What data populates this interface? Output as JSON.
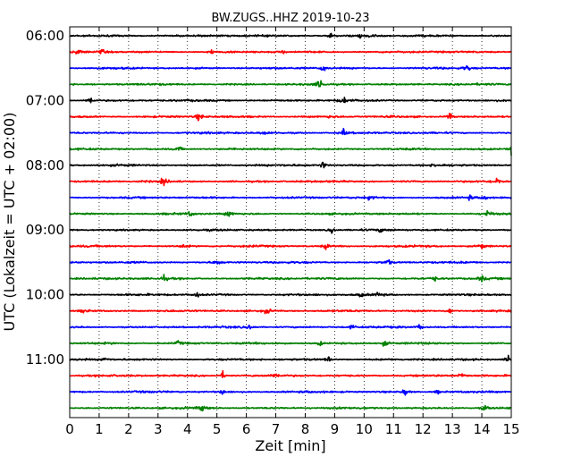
{
  "chart_data": {
    "type": "line",
    "title": "BW.ZUGS..HHZ 2019-10-23",
    "xlabel": "Zeit  [min]",
    "ylabel": "UTC (Lokalzeit = UTC + 02:00)",
    "xlim": [
      0,
      15
    ],
    "x_ticks": [
      "0",
      "1",
      "2",
      "3",
      "4",
      "5",
      "6",
      "7",
      "8",
      "9",
      "10",
      "11",
      "12",
      "13",
      "14",
      "15"
    ],
    "y_tick_labels": [
      "06:00",
      "07:00",
      "08:00",
      "09:00",
      "10:00",
      "11:00"
    ],
    "grid": "vertical-dotted",
    "color_cycle": [
      "#000000",
      "#ff0000",
      "#0000ff",
      "#008000"
    ],
    "series": [
      {
        "start": "06:00",
        "color": "#000000",
        "events": [
          [
            8.9,
            0.5
          ],
          [
            9.9,
            0.6
          ],
          [
            10.3,
            0.4
          ]
        ]
      },
      {
        "start": "06:15",
        "color": "#ff0000",
        "events": [
          [
            0.3,
            0.5
          ],
          [
            1.1,
            0.5
          ],
          [
            4.8,
            0.4
          ],
          [
            7.3,
            0.4
          ]
        ]
      },
      {
        "start": "06:30",
        "color": "#0000ff",
        "events": [
          [
            8.6,
            1.0
          ],
          [
            13.5,
            0.8
          ]
        ]
      },
      {
        "start": "06:45",
        "color": "#008000",
        "events": [
          [
            8.5,
            0.9
          ]
        ]
      },
      {
        "start": "07:00",
        "color": "#000000",
        "events": [
          [
            0.7,
            0.9
          ],
          [
            9.3,
            0.8
          ]
        ]
      },
      {
        "start": "07:15",
        "color": "#ff0000",
        "events": [
          [
            4.4,
            0.9
          ],
          [
            8.9,
            0.4
          ],
          [
            12.9,
            0.8
          ]
        ]
      },
      {
        "start": "07:30",
        "color": "#0000ff",
        "events": [
          [
            6.6,
            0.4
          ],
          [
            9.3,
            0.7
          ]
        ]
      },
      {
        "start": "07:45",
        "color": "#008000",
        "events": [
          [
            3.7,
            0.6
          ],
          [
            15.0,
            0.9
          ]
        ]
      },
      {
        "start": "08:00",
        "color": "#000000",
        "events": [
          [
            8.6,
            0.8
          ],
          [
            12.4,
            0.3
          ]
        ]
      },
      {
        "start": "08:15",
        "color": "#ff0000",
        "events": [
          [
            3.2,
            0.7
          ],
          [
            14.5,
            0.8
          ]
        ]
      },
      {
        "start": "08:30",
        "color": "#0000ff",
        "events": [
          [
            10.2,
            0.5
          ],
          [
            13.6,
            0.5
          ],
          [
            14.1,
            0.6
          ]
        ]
      },
      {
        "start": "08:45",
        "color": "#008000",
        "events": [
          [
            4.1,
            0.6
          ],
          [
            5.4,
            0.8
          ],
          [
            14.2,
            0.8
          ]
        ]
      },
      {
        "start": "09:00",
        "color": "#000000",
        "events": [
          [
            8.9,
            0.8
          ],
          [
            10.6,
            0.4
          ]
        ]
      },
      {
        "start": "09:15",
        "color": "#ff0000",
        "events": [
          [
            3.9,
            0.5
          ],
          [
            8.7,
            0.6
          ],
          [
            14.0,
            0.7
          ]
        ]
      },
      {
        "start": "09:30",
        "color": "#0000ff",
        "events": [
          [
            5.0,
            0.6
          ],
          [
            10.8,
            0.7
          ]
        ]
      },
      {
        "start": "09:45",
        "color": "#008000",
        "events": [
          [
            3.2,
            0.6
          ],
          [
            12.4,
            0.5
          ],
          [
            14.0,
            0.6
          ]
        ]
      },
      {
        "start": "10:00",
        "color": "#000000",
        "events": [
          [
            4.3,
            0.7
          ],
          [
            9.9,
            0.5
          ],
          [
            10.5,
            0.6
          ]
        ]
      },
      {
        "start": "10:15",
        "color": "#ff0000",
        "events": [
          [
            0.5,
            0.6
          ],
          [
            6.7,
            0.8
          ],
          [
            12.9,
            0.6
          ]
        ]
      },
      {
        "start": "10:30",
        "color": "#0000ff",
        "events": [
          [
            6.1,
            0.6
          ],
          [
            9.6,
            0.5
          ],
          [
            11.9,
            0.6
          ]
        ]
      },
      {
        "start": "10:45",
        "color": "#008000",
        "events": [
          [
            3.7,
            0.5
          ],
          [
            8.5,
            0.5
          ],
          [
            10.7,
            0.6
          ]
        ]
      },
      {
        "start": "11:00",
        "color": "#000000",
        "events": [
          [
            1.2,
            0.6
          ],
          [
            8.8,
            0.6
          ],
          [
            14.9,
            0.8
          ]
        ]
      },
      {
        "start": "11:15",
        "color": "#ff0000",
        "events": [
          [
            5.2,
            0.7
          ],
          [
            7.0,
            0.5
          ],
          [
            13.3,
            0.6
          ]
        ]
      },
      {
        "start": "11:30",
        "color": "#0000ff",
        "events": [
          [
            5.2,
            0.6
          ],
          [
            11.4,
            0.8
          ],
          [
            12.5,
            0.4
          ]
        ]
      },
      {
        "start": "11:45",
        "color": "#008000",
        "events": [
          [
            4.5,
            0.7
          ],
          [
            14.1,
            0.6
          ]
        ]
      }
    ]
  }
}
